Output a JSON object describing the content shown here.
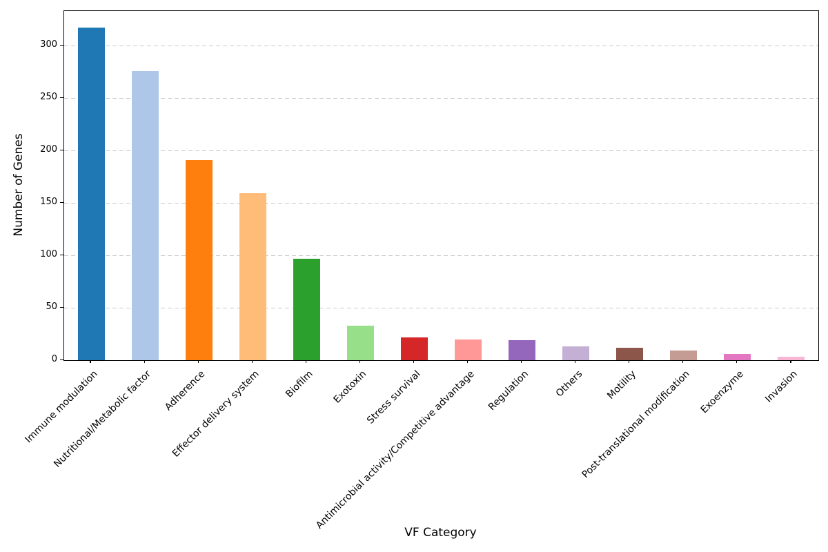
{
  "figure": {
    "background": "#ffffff"
  },
  "chart_data": {
    "type": "bar",
    "title": "",
    "xlabel": "VF Category",
    "ylabel": "Number of Genes",
    "categories": [
      "Immune modulation",
      "Nutritional/Metabolic factor",
      "Adherence",
      "Effector delivery system",
      "Biofilm",
      "Exotoxin",
      "Stress survival",
      "Antimicrobial activity/Competitive advantage",
      "Regulation",
      "Others",
      "Motility",
      "Post-translational modification",
      "Exoenzyme",
      "Invasion"
    ],
    "values": [
      317,
      276,
      191,
      159,
      97,
      33,
      22,
      20,
      19,
      13,
      12,
      9,
      6,
      3
    ],
    "bar_colors": [
      "#1f77b4",
      "#aec7e8",
      "#ff7f0e",
      "#ffbb78",
      "#2ca02c",
      "#98df8a",
      "#d62728",
      "#ff9896",
      "#9467bd",
      "#c5b0d5",
      "#8c564b",
      "#c49c94",
      "#e377c2",
      "#f7b6d2"
    ],
    "ylim": [
      0,
      333
    ],
    "yticks": [
      0,
      50,
      100,
      150,
      200,
      250,
      300
    ],
    "grid": {
      "axis": "y",
      "style": "dashed",
      "color": "#c8c8c8"
    },
    "legend": "none",
    "x_tick_label_rotation_deg": 45,
    "bar_width_fraction": 0.5
  }
}
